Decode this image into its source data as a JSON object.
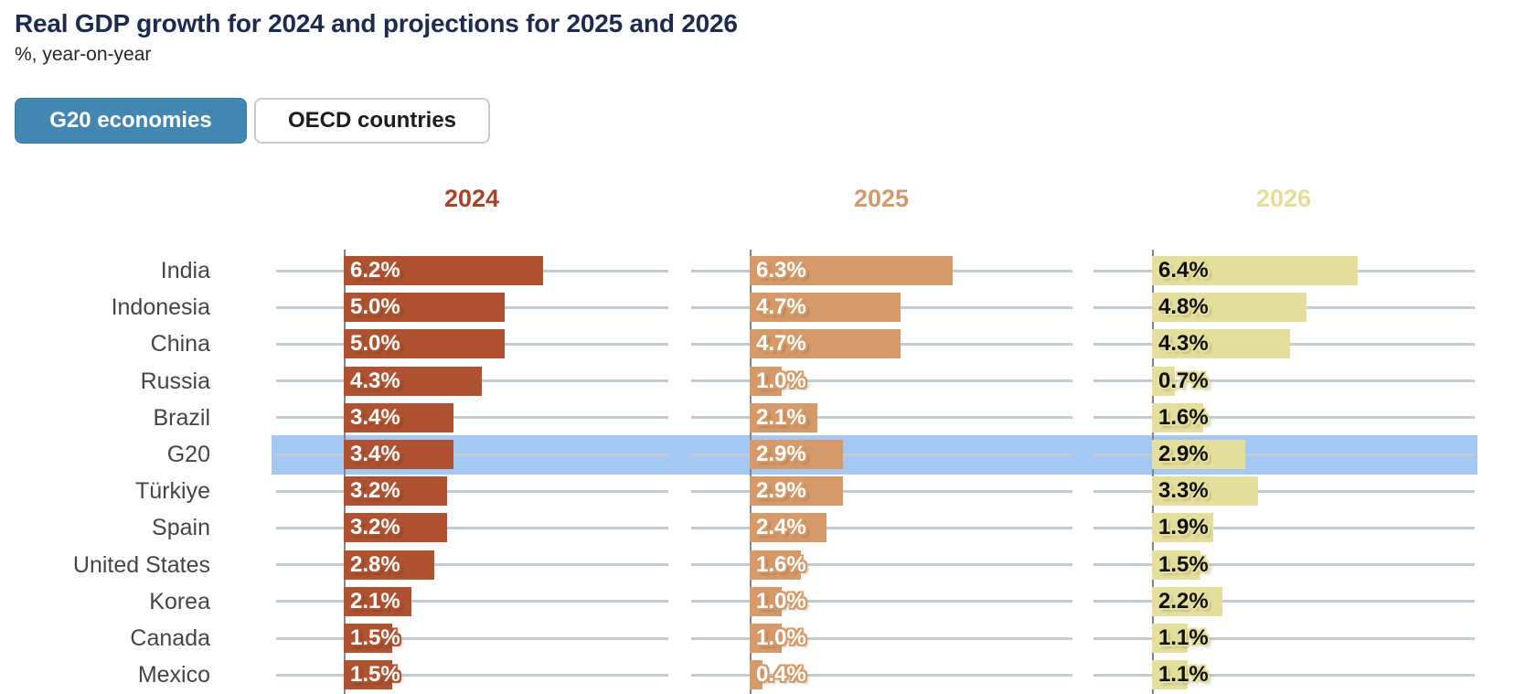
{
  "header": {
    "title": "Real GDP growth for 2024 and projections for 2025 and 2026",
    "subtitle": "%, year-on-year"
  },
  "toggle": {
    "g20_label": "G20 economies",
    "oecd_label": "OECD countries",
    "selected": "G20 economies"
  },
  "colors": {
    "title_navy": "#1d2b4f",
    "accent_blue": "#4286b2",
    "highlight_band": "#a4c8f2",
    "gridline": "#c3cbd5",
    "axis": "#7e8791",
    "bar_2024": "#ae5231",
    "bar_2025": "#d69a6a",
    "bar_2026": "#e5df9e",
    "header_2024": "#a8432a",
    "header_2025": "#d2996b",
    "header_2026": "#e4dd9b",
    "value_label_2024": "#ffffff",
    "value_label_2025": "#ffffff",
    "value_label_2026": "#101010"
  },
  "chart_data": {
    "type": "bar",
    "orientation": "horizontal",
    "title": "Real GDP growth for 2024 and projections for 2025 and 2026",
    "ylabel": "",
    "xlabel": "%, year-on-year",
    "xlim": [
      0,
      10
    ],
    "grid": true,
    "legend_position": "panel-headers",
    "categories": [
      "India",
      "Indonesia",
      "China",
      "Russia",
      "Brazil",
      "G20",
      "Türkiye",
      "Spain",
      "United States",
      "Korea",
      "Canada",
      "Mexico"
    ],
    "highlighted_category": "G20",
    "series": [
      {
        "name": "2024",
        "values": [
          6.2,
          5.0,
          5.0,
          4.3,
          3.4,
          3.4,
          3.2,
          3.2,
          2.8,
          2.1,
          1.5,
          1.5
        ]
      },
      {
        "name": "2025",
        "values": [
          6.3,
          4.7,
          4.7,
          1.0,
          2.1,
          2.9,
          2.9,
          2.4,
          1.6,
          1.0,
          1.0,
          0.4
        ]
      },
      {
        "name": "2026",
        "values": [
          6.4,
          4.8,
          4.3,
          0.7,
          1.6,
          2.9,
          3.3,
          1.9,
          1.5,
          2.2,
          1.1,
          1.1
        ]
      }
    ],
    "value_suffix": "%"
  }
}
